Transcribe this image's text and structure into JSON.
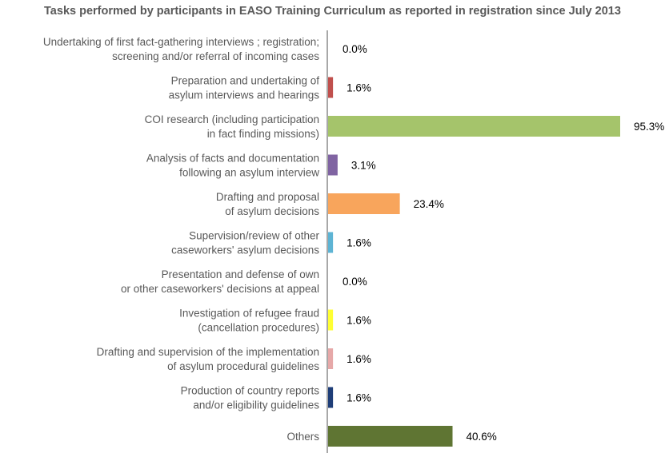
{
  "chart_data": {
    "type": "bar",
    "orientation": "horizontal",
    "title": "Tasks performed by participants in EASO Training Curriculum as reported in registration since July 2013",
    "xlabel": "",
    "ylabel": "",
    "xlim": [
      0,
      100
    ],
    "grid": false,
    "legend": "none",
    "categories": [
      [
        "Undertaking of first fact-gathering interviews ; registration;",
        "screening and/or referral of incoming cases"
      ],
      [
        "Preparation and undertaking of",
        "asylum interviews and hearings"
      ],
      [
        "COI research (including participation",
        "in fact finding missions)"
      ],
      [
        "Analysis of facts and documentation",
        "following an asylum interview"
      ],
      [
        "Drafting and proposal",
        "of asylum decisions"
      ],
      [
        "Supervision/review of other",
        "caseworkers' asylum decisions"
      ],
      [
        "Presentation and defense of own",
        "or other caseworkers' decisions at appeal"
      ],
      [
        "Investigation of refugee fraud",
        "(cancellation procedures)"
      ],
      [
        "Drafting and supervision of the implementation",
        "of asylum procedural guidelines"
      ],
      [
        "Production of country reports",
        "and/or eligibility guidelines"
      ],
      [
        "Others"
      ]
    ],
    "values": [
      0.0,
      1.6,
      95.3,
      3.1,
      23.4,
      1.6,
      0.0,
      1.6,
      1.6,
      1.6,
      40.6
    ],
    "value_labels": [
      "0.0%",
      "1.6%",
      "95.3%",
      "3.1%",
      "23.4%",
      "1.6%",
      "0.0%",
      "1.6%",
      "1.6%",
      "1.6%",
      "40.6%"
    ],
    "colors": [
      "#4f81bd",
      "#c0504d",
      "#a5c46b",
      "#8064a2",
      "#f8a55c",
      "#5eb4d4",
      "#888888",
      "#ffff33",
      "#e6a8a8",
      "#1f3e78",
      "#5f7533"
    ]
  }
}
